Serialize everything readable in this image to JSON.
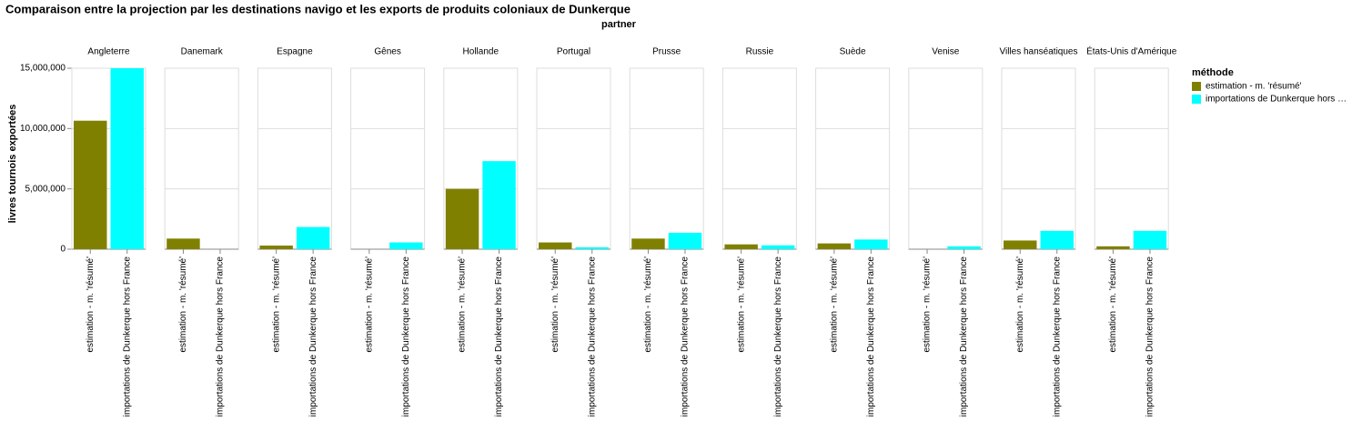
{
  "chart_data": {
    "type": "bar",
    "title": "Comparaison entre la projection par les destinations navigo et les exports de produits coloniaux de Dunkerque",
    "facet_title": "partner",
    "ylabel": "livres tournois exportées",
    "legend_title": "méthode",
    "legend_labels": [
      "estimation - m. 'résumé'",
      "importations de Dunkerque hors …"
    ],
    "categories": [
      "Angleterre",
      "Danemark",
      "Espagne",
      "Gênes",
      "Hollande",
      "Portugal",
      "Prusse",
      "Russie",
      "Suède",
      "Venise",
      "Villes hanséatiques",
      "États-Unis d'Amérique"
    ],
    "series": [
      {
        "name": "estimation - m. 'résumé'",
        "color": "#808000",
        "values": [
          10650000,
          880000,
          300000,
          0,
          5000000,
          560000,
          880000,
          400000,
          480000,
          0,
          720000,
          240000
        ]
      },
      {
        "name": "importations de Dunkerque hors France",
        "color": "#00ffff",
        "values": [
          15000000,
          0,
          1840000,
          560000,
          7300000,
          160000,
          1360000,
          320000,
          800000,
          240000,
          1520000,
          1520000
        ]
      }
    ],
    "ylim": [
      0,
      15000000
    ],
    "yticks": [
      {
        "value": 0,
        "label": "0"
      },
      {
        "value": 5000000,
        "label": "5,000,000"
      },
      {
        "value": 10000000,
        "label": "10,000,000"
      },
      {
        "value": 15000000,
        "label": "15,000,000"
      }
    ],
    "grid": true
  }
}
